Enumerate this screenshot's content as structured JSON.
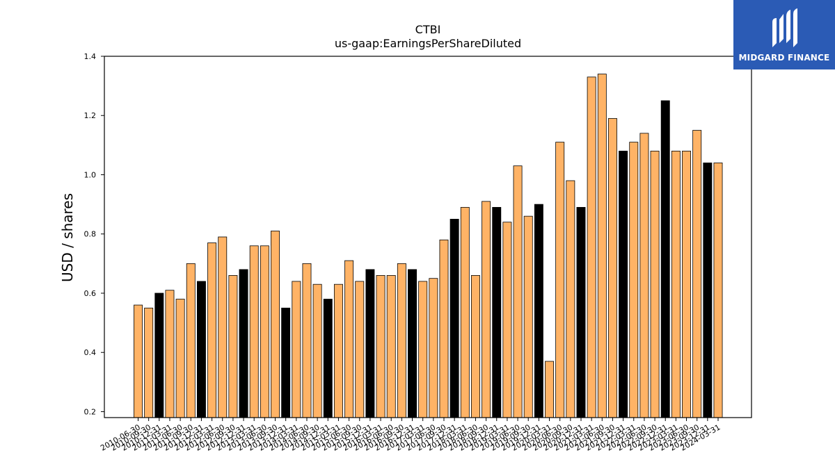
{
  "brand": {
    "name": "MIDGARD FINANCE",
    "color": "#2b5bb5"
  },
  "chart_data": {
    "type": "bar",
    "title": "CTBI",
    "subtitle": "us-gaap:EarningsPerShareDiluted",
    "xlabel": "",
    "ylabel": "USD / shares",
    "ylim": [
      0.18,
      1.4
    ],
    "yticks": [
      0.2,
      0.4,
      0.6,
      0.8,
      1.0,
      1.2,
      1.4
    ],
    "grid": false,
    "colors": {
      "quarterly": "#ffb366",
      "annual": "#000000",
      "edge": "#000000"
    },
    "categories": [
      "2010-06-30",
      "2010-09-30",
      "2010-12-31",
      "2011-03-31",
      "2011-06-30",
      "2011-09-30",
      "2011-12-31",
      "2012-03-31",
      "2012-06-30",
      "2012-09-30",
      "2012-12-31",
      "2013-03-31",
      "2013-06-30",
      "2013-09-30",
      "2013-12-31",
      "2014-03-31",
      "2014-06-30",
      "2014-09-30",
      "2014-12-31",
      "2015-03-31",
      "2015-06-30",
      "2015-09-30",
      "2015-12-31",
      "2016-03-31",
      "2016-06-30",
      "2016-09-30",
      "2016-12-31",
      "2017-03-31",
      "2017-06-30",
      "2017-09-30",
      "2017-12-31",
      "2018-03-31",
      "2018-06-30",
      "2018-09-30",
      "2018-12-31",
      "2019-03-31",
      "2019-06-30",
      "2019-09-30",
      "2019-12-31",
      "2020-03-31",
      "2020-06-30",
      "2020-09-30",
      "2020-12-31",
      "2021-03-31",
      "2021-06-30",
      "2021-09-30",
      "2021-12-31",
      "2022-03-31",
      "2022-06-30",
      "2022-09-30",
      "2022-12-31",
      "2023-03-31",
      "2023-06-30",
      "2023-09-30",
      "2023-12-31",
      "2024-03-31"
    ],
    "values": [
      0.56,
      0.55,
      0.6,
      0.61,
      0.58,
      0.7,
      0.64,
      0.77,
      0.79,
      0.66,
      0.68,
      0.76,
      0.76,
      0.81,
      0.55,
      0.64,
      0.7,
      0.63,
      0.58,
      0.63,
      0.71,
      0.64,
      0.68,
      0.66,
      0.66,
      0.7,
      0.68,
      0.64,
      0.65,
      0.78,
      0.85,
      0.89,
      0.66,
      0.91,
      0.89,
      0.84,
      1.03,
      0.86,
      0.9,
      0.37,
      1.11,
      0.98,
      0.89,
      1.33,
      1.34,
      1.19,
      1.08,
      1.11,
      1.14,
      1.08,
      1.25,
      1.08,
      1.08,
      1.15,
      1.04,
      1.04
    ],
    "annual": [
      false,
      false,
      true,
      false,
      false,
      false,
      true,
      false,
      false,
      false,
      true,
      false,
      false,
      false,
      true,
      false,
      false,
      false,
      true,
      false,
      false,
      false,
      true,
      false,
      false,
      false,
      true,
      false,
      false,
      false,
      true,
      false,
      false,
      false,
      true,
      false,
      false,
      false,
      true,
      false,
      false,
      false,
      true,
      false,
      false,
      false,
      true,
      false,
      false,
      false,
      true,
      false,
      false,
      false,
      true,
      false
    ]
  }
}
